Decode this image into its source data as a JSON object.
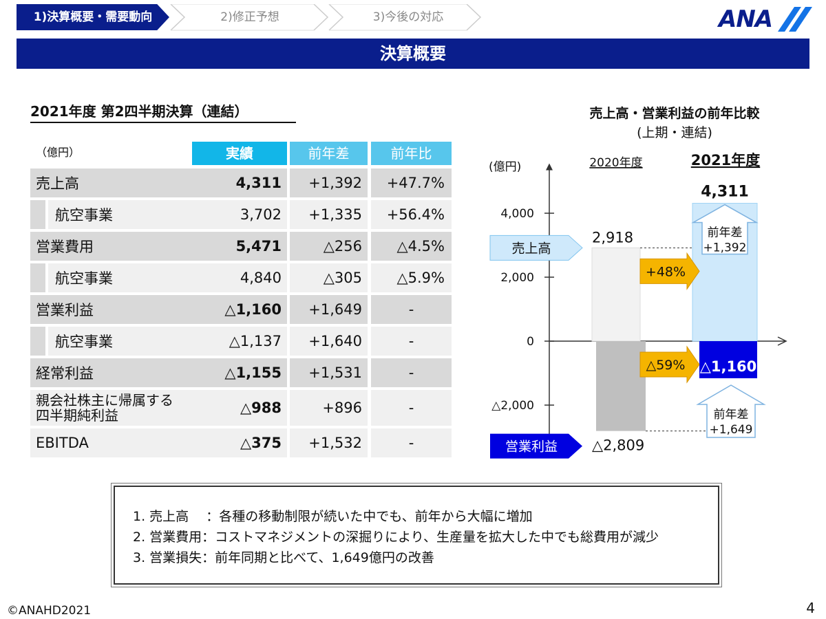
{
  "nav": {
    "steps": [
      "1)決算概要・需要動向",
      "2)修正予想",
      "3)今後の対応"
    ],
    "logo": "ANA"
  },
  "banner_title": "決算概要",
  "table": {
    "title": "2021年度 第2四半期決算（連結）",
    "unit": "（億円）",
    "headers": [
      "実績",
      "前年差",
      "前年比"
    ],
    "rows": [
      {
        "label": "売上高",
        "actual": "4,311",
        "diff": "+1,392",
        "ratio": "+47.7%"
      },
      {
        "label": "航空事業",
        "actual": "3,702",
        "diff": "+1,335",
        "ratio": "+56.4%"
      },
      {
        "label": "営業費用",
        "actual": "5,471",
        "diff": "△256",
        "ratio": "△4.5%"
      },
      {
        "label": "航空事業",
        "actual": "4,840",
        "diff": "△305",
        "ratio": "△5.9%"
      },
      {
        "label": "営業利益",
        "actual": "△1,160",
        "diff": "+1,649",
        "ratio": "-"
      },
      {
        "label": "航空事業",
        "actual": "△1,137",
        "diff": "+1,640",
        "ratio": "-"
      },
      {
        "label": "経常利益",
        "actual": "△1,155",
        "diff": "+1,531",
        "ratio": "-"
      },
      {
        "label_line1": "親会社株主に帰属する",
        "label_line2": "四半期純利益",
        "actual": "△988",
        "diff": "+896",
        "ratio": "-"
      },
      {
        "label": "EBITDA",
        "actual": "△375",
        "diff": "+1,532",
        "ratio": "-"
      }
    ]
  },
  "chart_data": {
    "type": "bar",
    "title": "売上高・営業利益の前年比較",
    "subtitle": "(上期・連結)",
    "ylabel": "(億円)",
    "categories": [
      "2020年度",
      "2021年度"
    ],
    "ylim": [
      -2900,
      5300
    ],
    "yticks": [
      4000,
      2000,
      0,
      -2000
    ],
    "ytick_labels": [
      "4,000",
      "2,000",
      "0",
      "△2,000"
    ],
    "series": [
      {
        "name": "売上高",
        "values": [
          2918,
          4311
        ],
        "value_labels": [
          "2,918",
          "4,311"
        ],
        "colors": [
          "#f2f2f2",
          "#cfe9fb"
        ]
      },
      {
        "name": "営業利益",
        "values": [
          -2809,
          -1160
        ],
        "value_labels": [
          "△2,809",
          "△1,160"
        ],
        "colors": [
          "#bfbfbf",
          "#0000e0"
        ]
      }
    ],
    "annotations": {
      "revenue_change": "+48%",
      "profit_change": "△59%",
      "revenue_diff_label": "前年差",
      "revenue_diff_value": "+1,392",
      "profit_diff_label": "前年差",
      "profit_diff_value": "+1,649"
    }
  },
  "summary": {
    "lines": [
      "1.  売上高　 ：各種の移動制限が続いた中でも、前年から大幅に増加",
      "2.  営業費用：コストマネジメントの深掘りにより、生産量を拡大した中でも総費用が減少",
      "3.  営業損失：前年同期と比べて、1,649億円の改善"
    ]
  },
  "footer": {
    "copyright": "©ANAHD2021",
    "page": "4"
  }
}
